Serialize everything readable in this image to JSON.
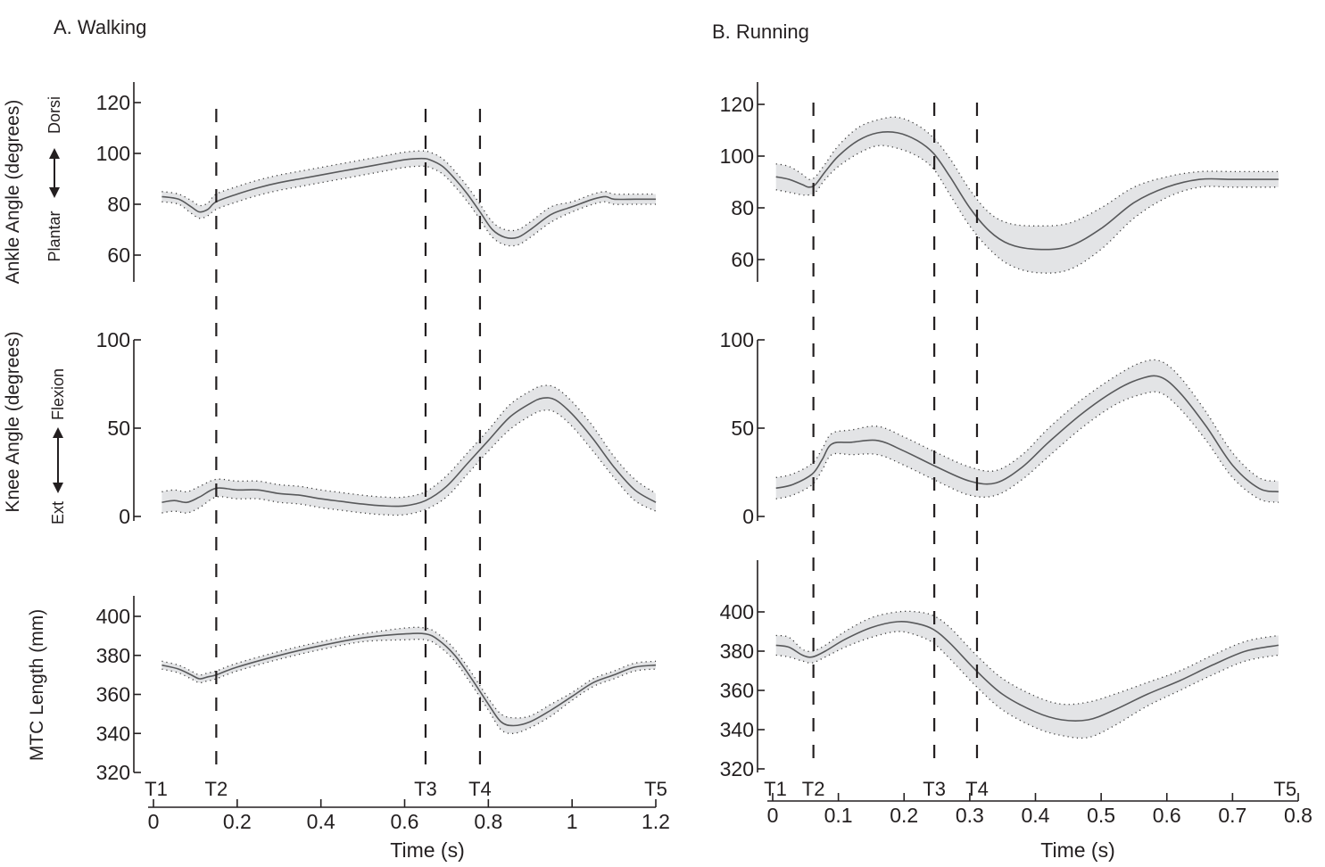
{
  "figure": {
    "colors": {
      "band": "#e3e4e6",
      "line": "#58595b",
      "axis": "#231f20",
      "text": "#231f20"
    },
    "arrow_labels": {
      "ankle": {
        "down": "Plantar",
        "up": "Dorsi"
      },
      "knee": {
        "down": "Ext",
        "up": "Flexion"
      }
    }
  },
  "chart_data": [
    {
      "id": "walking",
      "type": "line",
      "title": "A. Walking",
      "xlabel": "Time (s)",
      "xlim": [
        0,
        1.2
      ],
      "xticks": [
        0,
        0.2,
        0.4,
        0.6,
        0.8,
        1,
        1.2
      ],
      "xtick_labels": [
        "0",
        "0.2",
        "0.4",
        "0.6",
        "0.8",
        "1",
        "1.2"
      ],
      "events": [
        {
          "label": "T1",
          "t": 0.0
        },
        {
          "label": "T2",
          "t": 0.15
        },
        {
          "label": "T3",
          "t": 0.65
        },
        {
          "label": "T4",
          "t": 0.78
        },
        {
          "label": "T5",
          "t": 1.2
        }
      ],
      "dashed_lines": [
        0.15,
        0.65,
        0.78
      ],
      "panels": [
        {
          "id": "ankle",
          "ylabel": "Ankle Angle (degrees)",
          "ylim": [
            50,
            120
          ],
          "yticks": [
            60,
            80,
            100,
            120
          ],
          "x": [
            0.02,
            0.06,
            0.09,
            0.11,
            0.13,
            0.15,
            0.2,
            0.25,
            0.3,
            0.35,
            0.4,
            0.45,
            0.5,
            0.55,
            0.6,
            0.64,
            0.66,
            0.69,
            0.72,
            0.75,
            0.78,
            0.81,
            0.84,
            0.87,
            0.9,
            0.95,
            1.0,
            1.05,
            1.08,
            1.1,
            1.15,
            1.2
          ],
          "mean": [
            83,
            82,
            79,
            77,
            78,
            81,
            84,
            86.5,
            88.5,
            90,
            91.5,
            93,
            94.5,
            96,
            97.5,
            98,
            97.5,
            95,
            90,
            84,
            77,
            70,
            67,
            67,
            70,
            76,
            79,
            82,
            83,
            82,
            82,
            82
          ],
          "sd": [
            2,
            2,
            2.5,
            2.5,
            2.5,
            3,
            3,
            3,
            3,
            3,
            3,
            3,
            3,
            3,
            3,
            3,
            3,
            3,
            3,
            3,
            3,
            3,
            3,
            3,
            3,
            3,
            2,
            2,
            2,
            2,
            2,
            2
          ]
        },
        {
          "id": "knee",
          "ylabel": "Knee Angle (degrees)",
          "ylim": [
            0,
            100
          ],
          "yticks": [
            0,
            50,
            100
          ],
          "x": [
            0.02,
            0.05,
            0.08,
            0.11,
            0.15,
            0.2,
            0.25,
            0.3,
            0.35,
            0.4,
            0.45,
            0.5,
            0.55,
            0.6,
            0.65,
            0.7,
            0.75,
            0.8,
            0.85,
            0.9,
            0.93,
            0.96,
            1.0,
            1.05,
            1.1,
            1.15,
            1.2
          ],
          "mean": [
            8,
            9,
            8,
            11,
            16,
            15,
            15,
            13,
            12,
            10,
            8.5,
            7,
            6,
            6,
            9,
            17,
            30,
            43,
            56,
            64,
            67,
            66,
            58,
            44,
            28,
            15,
            8
          ],
          "sd": [
            6,
            6,
            6,
            6,
            5,
            5,
            5,
            5,
            5,
            5,
            5,
            5,
            5,
            5,
            5,
            6,
            6,
            6,
            7,
            7,
            7,
            7,
            7,
            7,
            6,
            6,
            5
          ]
        },
        {
          "id": "mtc",
          "ylabel": "MTC Length (mm)",
          "ylim": [
            320,
            410
          ],
          "yticks": [
            320,
            340,
            360,
            380,
            400
          ],
          "x": [
            0.02,
            0.06,
            0.09,
            0.11,
            0.13,
            0.15,
            0.2,
            0.3,
            0.4,
            0.5,
            0.6,
            0.65,
            0.68,
            0.72,
            0.76,
            0.8,
            0.83,
            0.86,
            0.9,
            0.95,
            1.0,
            1.05,
            1.1,
            1.15,
            1.2
          ],
          "mean": [
            375,
            373,
            370,
            368,
            369,
            370,
            374,
            380,
            385,
            389,
            391,
            391,
            388,
            380,
            368,
            355,
            346,
            344,
            346,
            352,
            359,
            366,
            370,
            374,
            375
          ],
          "sd": [
            2,
            2,
            2,
            2,
            2,
            2,
            2,
            2,
            2,
            2,
            3,
            3,
            3,
            3,
            3,
            3,
            4,
            4,
            3,
            3,
            2,
            2,
            2,
            2,
            2
          ]
        }
      ]
    },
    {
      "id": "running",
      "type": "line",
      "title": "B. Running",
      "xlabel": "Time (s)",
      "xlim": [
        0,
        0.8
      ],
      "xticks": [
        0,
        0.1,
        0.2,
        0.3,
        0.4,
        0.5,
        0.6,
        0.7,
        0.8
      ],
      "xtick_labels": [
        "0",
        "0.1",
        "0.2",
        "0.3",
        "0.4",
        "0.5",
        "0.6",
        "0.7",
        "0.8"
      ],
      "events": [
        {
          "label": "T1",
          "t": 0.0
        },
        {
          "label": "T2",
          "t": 0.062
        },
        {
          "label": "T3",
          "t": 0.246
        },
        {
          "label": "T4",
          "t": 0.311
        },
        {
          "label": "T5",
          "t": 0.78
        }
      ],
      "dashed_lines": [
        0.062,
        0.246,
        0.311
      ],
      "panels": [
        {
          "id": "ankle",
          "ylabel": "",
          "ylim": [
            50,
            120
          ],
          "yticks": [
            60,
            80,
            100,
            120
          ],
          "x": [
            0.005,
            0.025,
            0.045,
            0.055,
            0.065,
            0.08,
            0.1,
            0.13,
            0.16,
            0.19,
            0.22,
            0.245,
            0.27,
            0.3,
            0.33,
            0.36,
            0.4,
            0.45,
            0.5,
            0.55,
            0.6,
            0.65,
            0.7,
            0.75,
            0.77
          ],
          "mean": [
            92,
            91,
            89,
            88,
            89,
            94,
            100,
            106,
            109,
            109,
            106,
            101,
            92,
            80,
            71,
            66,
            64,
            65,
            72,
            82,
            88,
            91,
            91,
            91,
            91
          ],
          "sd": [
            5,
            5,
            4,
            3,
            3,
            3,
            4,
            5,
            5,
            6,
            6,
            6,
            7,
            7,
            7,
            8,
            9,
            9,
            8,
            6,
            4,
            3,
            3,
            3,
            3
          ]
        },
        {
          "id": "knee",
          "ylabel": "",
          "ylim": [
            0,
            100
          ],
          "yticks": [
            0,
            50,
            100
          ],
          "x": [
            0.005,
            0.03,
            0.06,
            0.075,
            0.09,
            0.12,
            0.16,
            0.2,
            0.25,
            0.3,
            0.34,
            0.38,
            0.42,
            0.47,
            0.52,
            0.56,
            0.59,
            0.62,
            0.66,
            0.7,
            0.74,
            0.77
          ],
          "mean": [
            16,
            18,
            24,
            32,
            41,
            42,
            43,
            37,
            28,
            20,
            19,
            28,
            42,
            58,
            71,
            78,
            79,
            70,
            51,
            29,
            16,
            14
          ],
          "sd": [
            6,
            6,
            6,
            6,
            6,
            7,
            8,
            8,
            8,
            8,
            7,
            7,
            8,
            8,
            8,
            9,
            9,
            9,
            8,
            7,
            6,
            6
          ]
        },
        {
          "id": "mtc",
          "ylabel": "",
          "ylim": [
            320,
            420
          ],
          "yticks": [
            320,
            340,
            360,
            380,
            400
          ],
          "x": [
            0.005,
            0.025,
            0.045,
            0.06,
            0.08,
            0.11,
            0.15,
            0.19,
            0.22,
            0.245,
            0.27,
            0.31,
            0.35,
            0.4,
            0.44,
            0.48,
            0.52,
            0.57,
            0.62,
            0.67,
            0.72,
            0.77
          ],
          "mean": [
            383,
            382,
            378,
            377,
            380,
            386,
            392,
            395,
            394,
            391,
            384,
            370,
            358,
            349,
            345,
            345,
            350,
            358,
            365,
            373,
            380,
            383
          ],
          "sd": [
            5,
            5,
            3,
            3,
            3,
            4,
            5,
            5,
            6,
            7,
            8,
            8,
            8,
            8,
            8,
            9,
            8,
            6,
            5,
            5,
            5,
            5
          ]
        }
      ]
    }
  ]
}
